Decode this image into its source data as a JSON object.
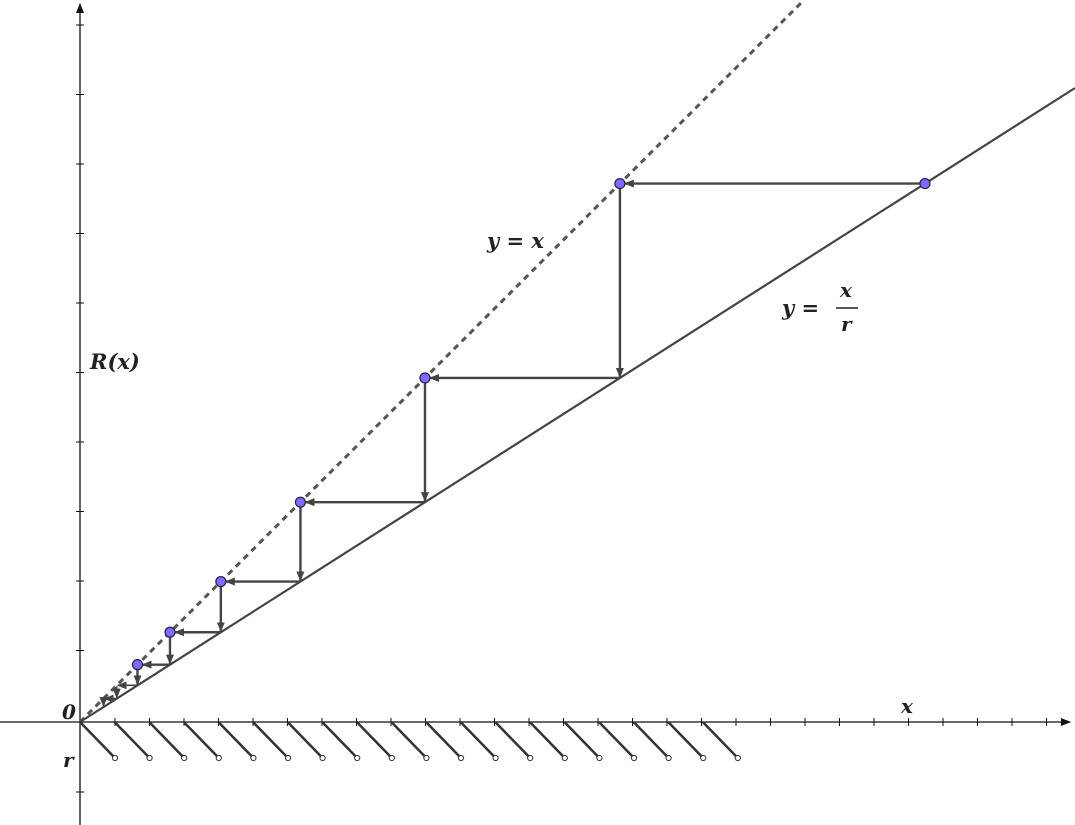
{
  "diagram": {
    "labels": {
      "origin": "0",
      "x_axis": "x",
      "y_axis": "R(x)",
      "r_mark": "r",
      "identity_line": "y = x",
      "scaled_line_lhs": "y =",
      "scaled_line_num": "x",
      "scaled_line_den": "r"
    },
    "colors": {
      "axis": "#111111",
      "line": "#444444",
      "dashed_line": "#555555",
      "step_arrow": "#444444",
      "point_fill": "#8866ff",
      "point_stroke": "#222244"
    },
    "ratio_r": 1.57,
    "fixed_point_count": 6,
    "hatch_segment_count": 19
  }
}
